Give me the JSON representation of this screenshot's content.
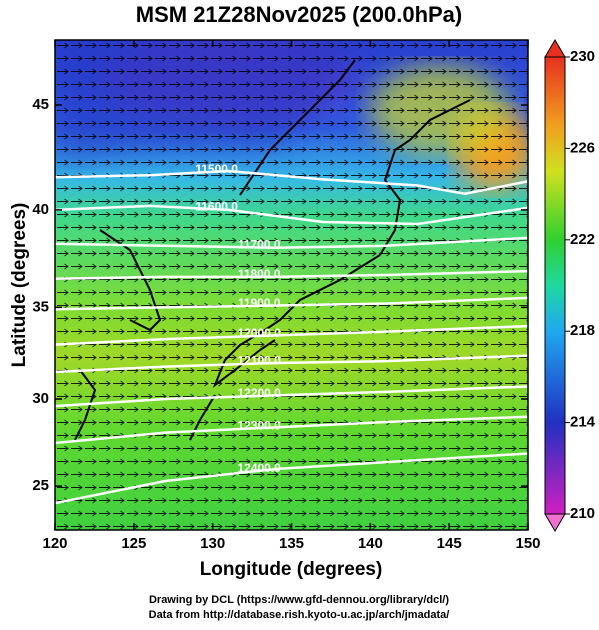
{
  "title": "MSM 21Z28Nov2025 (200.0hPa)",
  "x_axis": {
    "label": "Longitude (degrees)",
    "range": [
      120,
      150
    ],
    "ticks": [
      120,
      125,
      130,
      135,
      140,
      145,
      150
    ]
  },
  "y_axis": {
    "label": "Latitude  (degrees)",
    "range": [
      22.4,
      47.9
    ],
    "ticks": [
      25,
      30,
      35,
      40,
      45
    ]
  },
  "colorbar": {
    "range": [
      210,
      230
    ],
    "ticks": [
      210,
      214,
      218,
      222,
      226,
      230
    ]
  },
  "contours": [
    {
      "label": "11500.0",
      "points": [
        [
          120,
          41.6
        ],
        [
          126,
          41.7
        ],
        [
          131,
          41.9
        ],
        [
          137,
          41.5
        ],
        [
          143,
          41.2
        ],
        [
          146,
          40.8
        ],
        [
          150,
          41.4
        ]
      ]
    },
    {
      "label": "11600.0",
      "points": [
        [
          120,
          40.0
        ],
        [
          126,
          40.2
        ],
        [
          131,
          40.0
        ],
        [
          137,
          39.4
        ],
        [
          143,
          39.3
        ],
        [
          150,
          40.1
        ]
      ]
    },
    {
      "label": "11700.0",
      "points": [
        [
          120,
          38.3
        ],
        [
          127,
          38.2
        ],
        [
          134,
          38.1
        ],
        [
          141,
          38.2
        ],
        [
          150,
          38.6
        ]
      ]
    },
    {
      "label": "11800.0",
      "points": [
        [
          120,
          36.5
        ],
        [
          127,
          36.6
        ],
        [
          134,
          36.6
        ],
        [
          141,
          36.7
        ],
        [
          150,
          36.9
        ]
      ]
    },
    {
      "label": "11900.0",
      "points": [
        [
          120,
          34.9
        ],
        [
          127,
          35.0
        ],
        [
          134,
          35.1
        ],
        [
          141,
          35.2
        ],
        [
          150,
          35.5
        ]
      ]
    },
    {
      "label": "12000.0",
      "points": [
        [
          120,
          33.0
        ],
        [
          127,
          33.3
        ],
        [
          134,
          33.5
        ],
        [
          141,
          33.7
        ],
        [
          150,
          34.0
        ]
      ]
    },
    {
      "label": "12100.0",
      "points": [
        [
          120,
          31.5
        ],
        [
          127,
          31.8
        ],
        [
          134,
          32.0
        ],
        [
          141,
          32.1
        ],
        [
          150,
          32.4
        ]
      ]
    },
    {
      "label": "12200.0",
      "points": [
        [
          120,
          29.6
        ],
        [
          127,
          30.0
        ],
        [
          134,
          30.2
        ],
        [
          141,
          30.4
        ],
        [
          150,
          30.7
        ]
      ]
    },
    {
      "label": "12300.0",
      "points": [
        [
          120,
          27.5
        ],
        [
          127,
          28.1
        ],
        [
          134,
          28.4
        ],
        [
          141,
          28.7
        ],
        [
          150,
          29.0
        ]
      ]
    },
    {
      "label": "12400.0",
      "points": [
        [
          120,
          24.0
        ],
        [
          127,
          25.3
        ],
        [
          134,
          26.0
        ],
        [
          141,
          26.4
        ],
        [
          150,
          26.9
        ]
      ]
    }
  ],
  "footer": [
    "Drawing by DCL (https://www.gfd-dennou.org/library/dcl/)",
    "Data from http://database.rish.kyoto-u.ac.jp/arch/jmadata/"
  ]
}
